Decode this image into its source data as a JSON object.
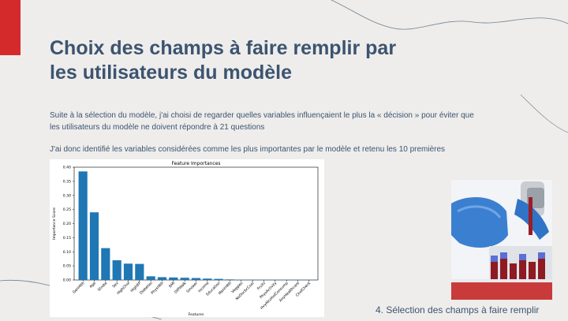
{
  "slide": {
    "title_line1": "Choix des champs à faire remplir par",
    "title_line2": "les utilisateurs du modèle",
    "para1_line1": "Suite à la sélection du modèle, j'ai choisi de regarder quelles variables influençaient le plus la « décision » pour éviter que",
    "para1_line2": "les utilisateurs du modèle ne doivent répondre à 21 questions",
    "para2": "J'ai donc identifié les variables considérées comme les plus importantes par le modèle et retenu les 10 premières",
    "footer": "4. Sélection des champs à faire remplir"
  },
  "colors": {
    "accent_red": "#d42a2c",
    "title_blue": "#3c5470",
    "bar_blue": "#1f77b4"
  },
  "chart_data": {
    "type": "bar",
    "title": "Feature Importances",
    "xlabel": "Features",
    "ylabel": "Importance Score",
    "ylim": [
      0,
      0.4
    ],
    "yticks": [
      "0.00",
      "0.05",
      "0.10",
      "0.15",
      "0.20",
      "0.25",
      "0.30",
      "0.35",
      "0.40"
    ],
    "categories": [
      "GenHlth",
      "Age",
      "Stroke",
      "Sex",
      "HighChol",
      "HighBP",
      "Diabetes",
      "PhysHlth",
      "BMI",
      "DiffWalk",
      "Smoker",
      "Income",
      "Education",
      "MentHlth",
      "Veggies",
      "NoDocbcCost",
      "Fruits",
      "PhysActivity",
      "HvyAlcoholConsump",
      "AnyHealthcare",
      "CholCheck"
    ],
    "values": [
      0.385,
      0.24,
      0.113,
      0.07,
      0.058,
      0.057,
      0.013,
      0.01,
      0.009,
      0.008,
      0.007,
      0.005,
      0.004,
      0.002,
      0.001,
      0.001,
      0.001,
      0.0005,
      0.0005,
      0.0003,
      0.0002
    ]
  }
}
